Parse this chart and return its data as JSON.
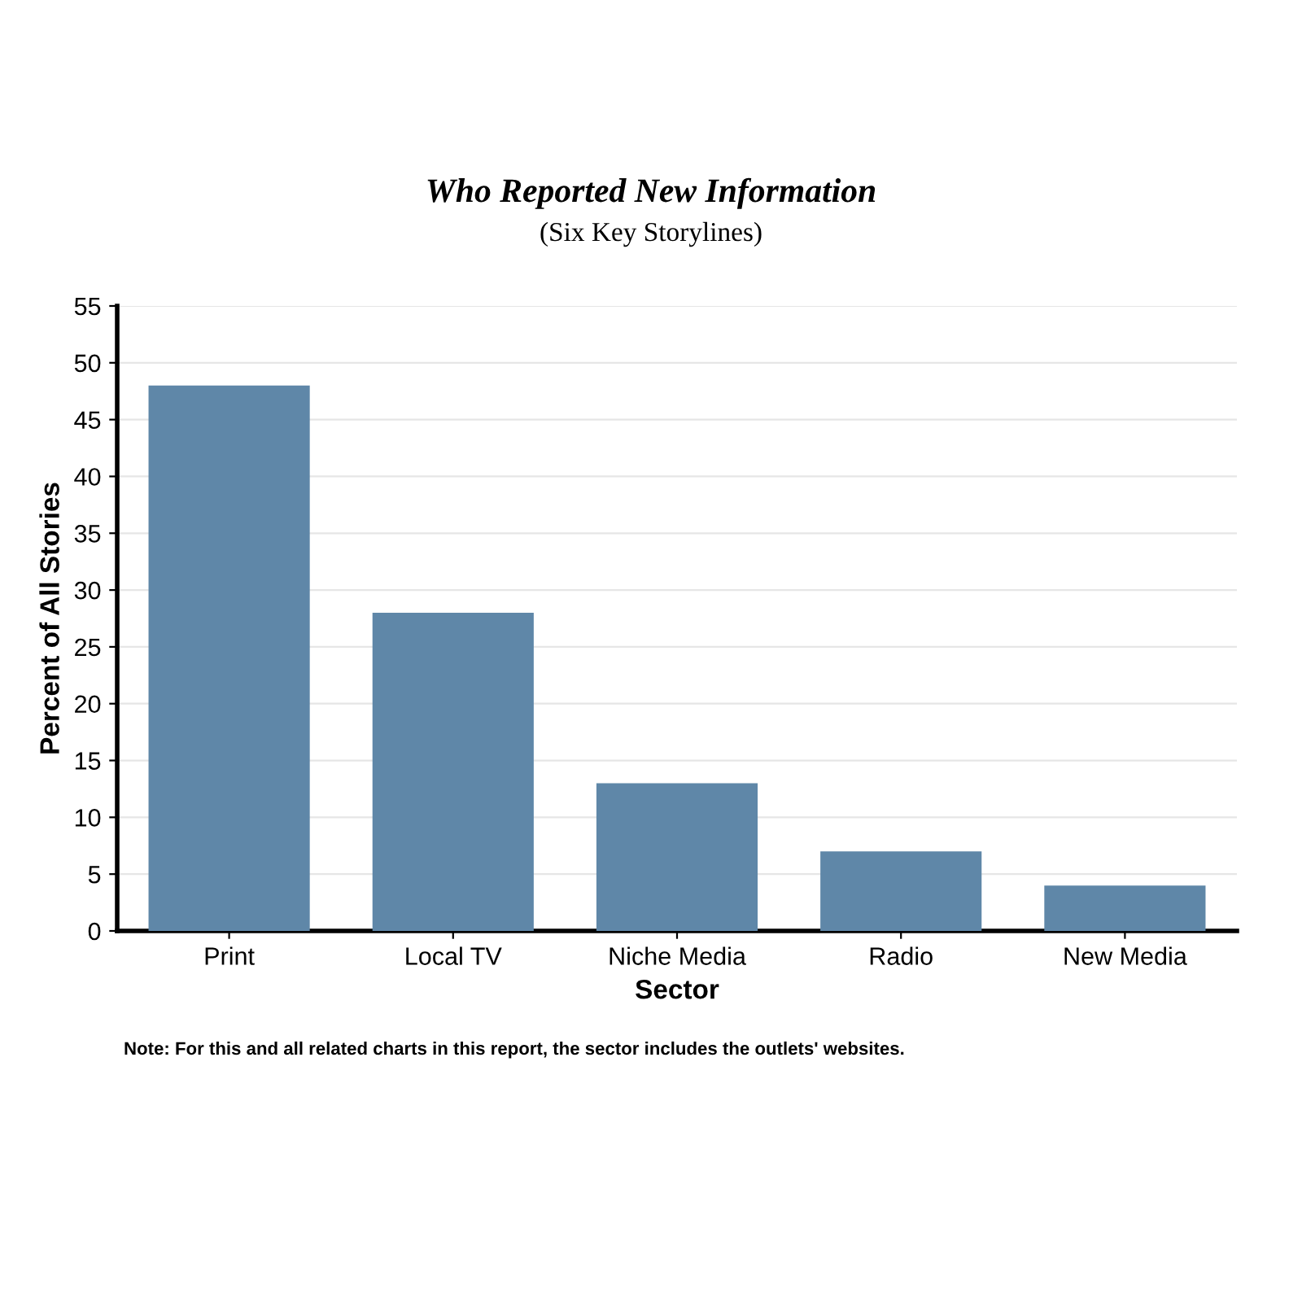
{
  "chart_data": {
    "type": "bar",
    "title": "Who Reported New Information",
    "subtitle": "(Six Key Storylines)",
    "xlabel": "Sector",
    "ylabel": "Percent of All Stories",
    "categories": [
      "Print",
      "Local TV",
      "Niche Media",
      "Radio",
      "New Media"
    ],
    "values": [
      48,
      28,
      13,
      7,
      4
    ],
    "color": "#5f87a8",
    "ylim": [
      0,
      55
    ],
    "yticks": [
      0,
      5,
      10,
      15,
      20,
      25,
      30,
      35,
      40,
      45,
      50,
      55
    ],
    "grid": "y",
    "annotations": [
      "Note: For this and all related charts in this report, the sector includes the outlets' websites."
    ]
  }
}
